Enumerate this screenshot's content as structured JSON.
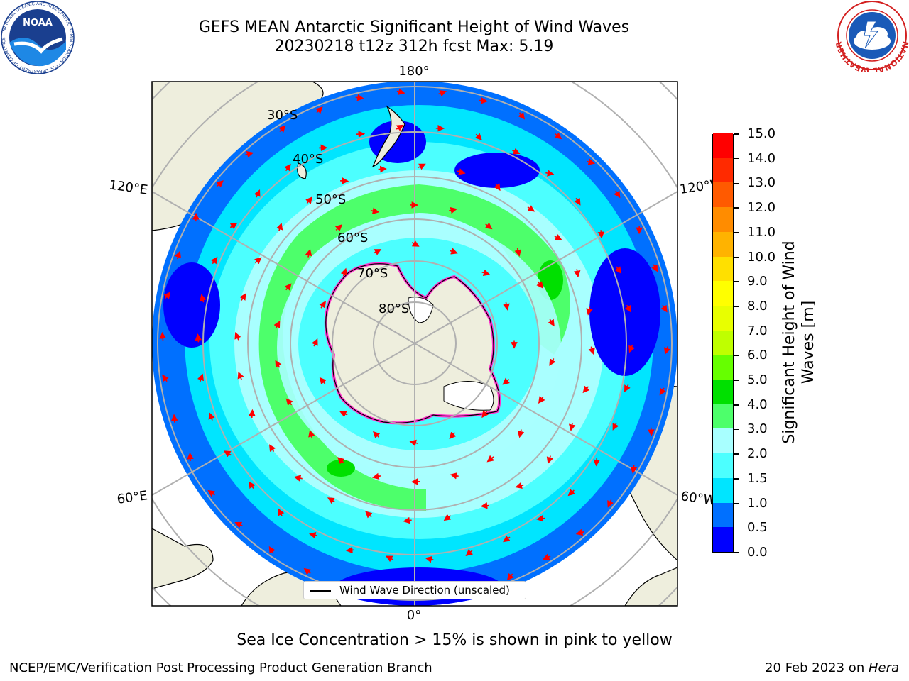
{
  "header": {
    "title_line1": "GEFS MEAN Antarctic Significant Height of Wind Waves",
    "title_line2": "20230218 t12z 312h fcst   Max: 5.19"
  },
  "logos": {
    "left": {
      "name": "noaa-logo",
      "text": "NOAA",
      "ring_text": "NATIONAL OCEANIC AND ATMOSPHERIC ADMINISTRATION · U.S. DEPARTMENT OF COMMERCE"
    },
    "right": {
      "name": "nws-logo",
      "ring_text": "NATIONAL WEATHER SERVICE"
    }
  },
  "map": {
    "longitude_labels": [
      "180°",
      "120°E",
      "120°W",
      "60°E",
      "60°W",
      "0°"
    ],
    "latitude_labels": [
      "30°S",
      "40°S",
      "50°S",
      "60°S",
      "70°S",
      "80°S"
    ],
    "legend_text": "Wind Wave Direction (unscaled)",
    "colors": {
      "land": "#eeeedd",
      "coast": "#000000",
      "grid": "#b0b0b0",
      "arrow": "#ff0000",
      "ice_edge": "#ff33cc"
    }
  },
  "colorbar": {
    "label": "Significant Height of Wind Waves [m]",
    "ticks": [
      "0.0",
      "0.5",
      "1.0",
      "1.5",
      "2.0",
      "3.0",
      "4.0",
      "5.0",
      "6.0",
      "7.0",
      "8.0",
      "9.0",
      "10.0",
      "11.0",
      "12.0",
      "13.0",
      "14.0",
      "15.0"
    ],
    "colors": [
      "#0000ff",
      "#0070ff",
      "#00e5ff",
      "#4cffff",
      "#a8ffff",
      "#4dff6b",
      "#00e000",
      "#66ff00",
      "#bfff00",
      "#e8ff00",
      "#ffff00",
      "#ffe000",
      "#ffb300",
      "#ff8c00",
      "#ff5a00",
      "#ff2a00",
      "#ff0000"
    ]
  },
  "footer": {
    "subtitle": "Sea Ice Concentration > 15% is shown in pink to yellow",
    "left": "NCEP/EMC/Verification Post Processing Product Generation Branch",
    "right_date": "20 Feb 2023 on ",
    "right_machine": "Hera"
  }
}
